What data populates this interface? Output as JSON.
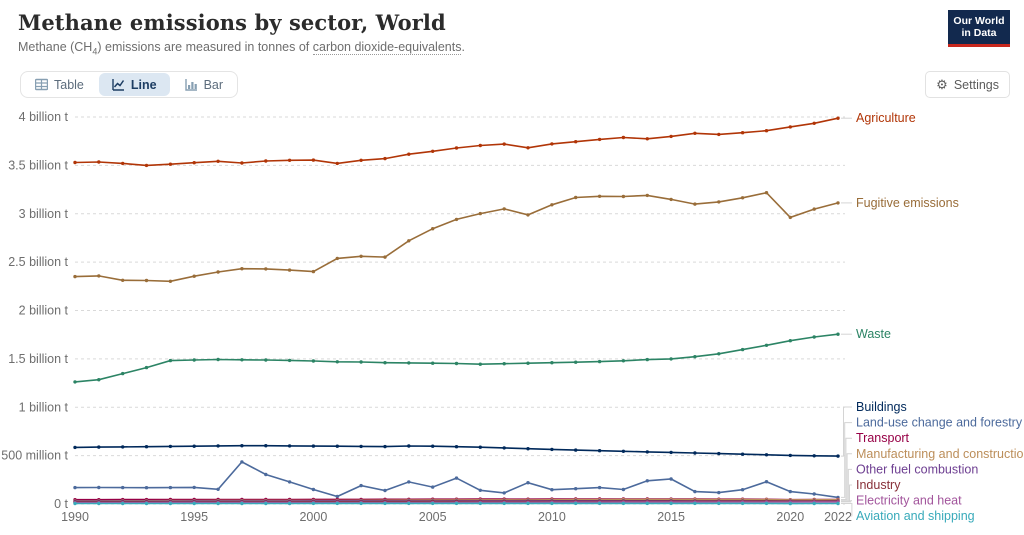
{
  "header": {
    "title": "Methane emissions by sector, World",
    "subtitle_prefix": "Methane (CH",
    "subtitle_sub": "4",
    "subtitle_mid": ") emissions are measured in tonnes of ",
    "subtitle_link": "carbon dioxide-equivalents",
    "subtitle_suffix": ".",
    "logo": {
      "line1": "Our World",
      "line2": "in Data",
      "bg": "#12294e",
      "accent": "#c8281e"
    }
  },
  "toolbar": {
    "tabs": [
      {
        "label": "Table",
        "icon": "table-icon",
        "active": false
      },
      {
        "label": "Line",
        "icon": "line-chart-icon",
        "active": true
      },
      {
        "label": "Bar",
        "icon": "bar-chart-icon",
        "active": false
      }
    ],
    "settings_label": "Settings"
  },
  "chart_data": {
    "type": "line",
    "title": "Methane emissions by sector, World",
    "unit": "million tonnes of CO2-equivalents",
    "grid": true,
    "legend_position": "right-end-labels",
    "xlim": [
      1990,
      2022
    ],
    "ylim": [
      0,
      4000
    ],
    "x": [
      1990,
      1991,
      1992,
      1993,
      1994,
      1995,
      1996,
      1997,
      1998,
      1999,
      2000,
      2001,
      2002,
      2003,
      2004,
      2005,
      2006,
      2007,
      2008,
      2009,
      2010,
      2011,
      2012,
      2013,
      2014,
      2015,
      2016,
      2017,
      2018,
      2019,
      2020,
      2021,
      2022
    ],
    "x_ticks": [
      1990,
      1995,
      2000,
      2005,
      2010,
      2015,
      2020,
      2022
    ],
    "y_ticks": [
      {
        "value": 0,
        "label": "0 t"
      },
      {
        "value": 500,
        "label": "500 million t"
      },
      {
        "value": 1000,
        "label": "1 billion t"
      },
      {
        "value": 1500,
        "label": "1.5 billion t"
      },
      {
        "value": 2000,
        "label": "2 billion t"
      },
      {
        "value": 2500,
        "label": "2.5 billion t"
      },
      {
        "value": 3000,
        "label": "3 billion t"
      },
      {
        "value": 3500,
        "label": "3.5 billion t"
      },
      {
        "value": 4000,
        "label": "4 billion t"
      }
    ],
    "series": [
      {
        "name": "Agriculture",
        "color": "#B13507",
        "label_slot": null,
        "values": [
          3530,
          3535,
          3520,
          3500,
          3512,
          3528,
          3542,
          3525,
          3545,
          3552,
          3555,
          3520,
          3552,
          3570,
          3615,
          3645,
          3680,
          3705,
          3720,
          3682,
          3722,
          3745,
          3768,
          3788,
          3775,
          3800,
          3832,
          3820,
          3838,
          3858,
          3898,
          3935,
          3988
        ]
      },
      {
        "name": "Fugitive emissions",
        "color": "#996D39",
        "label_slot": null,
        "values": [
          2350,
          2358,
          2312,
          2310,
          2302,
          2355,
          2398,
          2432,
          2430,
          2418,
          2402,
          2538,
          2560,
          2552,
          2720,
          2845,
          2942,
          3002,
          3050,
          2988,
          3092,
          3168,
          3180,
          3178,
          3190,
          3148,
          3100,
          3122,
          3165,
          3218,
          2962,
          3048,
          3112
        ]
      },
      {
        "name": "Waste",
        "color": "#2C8465",
        "label_slot": null,
        "values": [
          1262,
          1285,
          1348,
          1410,
          1482,
          1488,
          1494,
          1490,
          1488,
          1484,
          1478,
          1470,
          1468,
          1460,
          1458,
          1455,
          1452,
          1445,
          1450,
          1455,
          1460,
          1466,
          1472,
          1480,
          1492,
          1500,
          1522,
          1552,
          1596,
          1640,
          1688,
          1726,
          1755
        ]
      },
      {
        "name": "Buildings",
        "color": "#00295B",
        "label_slot": 0,
        "values": [
          585,
          588,
          590,
          592,
          595,
          597,
          600,
          603,
          603,
          600,
          598,
          597,
          595,
          593,
          599,
          597,
          592,
          587,
          580,
          572,
          564,
          557,
          551,
          545,
          539,
          533,
          527,
          521,
          515,
          509,
          502,
          498,
          495
        ]
      },
      {
        "name": "Land-use change and forestry",
        "color": "#4C6A9C",
        "label_slot": 1,
        "values": [
          170,
          171,
          170,
          168,
          170,
          172,
          152,
          435,
          305,
          228,
          150,
          78,
          190,
          140,
          228,
          175,
          268,
          142,
          115,
          220,
          148,
          158,
          170,
          150,
          240,
          258,
          128,
          118,
          148,
          230,
          128,
          103,
          68
        ]
      },
      {
        "name": "Transport",
        "color": "#970046",
        "label_slot": 2,
        "values": [
          44,
          44,
          45,
          45,
          46,
          46,
          46,
          47,
          47,
          47,
          48,
          48,
          48,
          49,
          49,
          50,
          50,
          51,
          51,
          50,
          51,
          52,
          52,
          52,
          52,
          51,
          51,
          50,
          50,
          49,
          44,
          46,
          47
        ]
      },
      {
        "name": "Manufacturing and construction",
        "color": "#BC8E5A",
        "label_slot": 3,
        "values": [
          32,
          32,
          33,
          33,
          34,
          34,
          35,
          35,
          35,
          35,
          36,
          36,
          37,
          38,
          39,
          40,
          41,
          42,
          42,
          41,
          43,
          44,
          44,
          45,
          45,
          45,
          45,
          44,
          44,
          44,
          42,
          43,
          43
        ]
      },
      {
        "name": "Other fuel combustion",
        "color": "#6D3E91",
        "label_slot": 4,
        "values": [
          28,
          28,
          28,
          28,
          28,
          29,
          29,
          29,
          29,
          29,
          30,
          30,
          30,
          31,
          31,
          31,
          32,
          32,
          32,
          32,
          33,
          33,
          33,
          33,
          33,
          33,
          32,
          32,
          32,
          32,
          31,
          31,
          32
        ]
      },
      {
        "name": "Industry",
        "color": "#883039",
        "label_slot": 5,
        "values": [
          20,
          20,
          20,
          21,
          21,
          21,
          22,
          22,
          22,
          22,
          23,
          23,
          23,
          24,
          24,
          25,
          25,
          26,
          26,
          25,
          27,
          27,
          27,
          28,
          28,
          28,
          28,
          28,
          28,
          29,
          27,
          28,
          28
        ]
      },
      {
        "name": "Electricity and heat",
        "color": "#A2559C",
        "label_slot": 6,
        "values": [
          13,
          13,
          13,
          13,
          14,
          14,
          14,
          14,
          14,
          14,
          15,
          15,
          15,
          16,
          16,
          17,
          17,
          18,
          18,
          18,
          19,
          19,
          19,
          20,
          20,
          20,
          20,
          21,
          21,
          21,
          21,
          22,
          22
        ]
      },
      {
        "name": "Aviation and shipping",
        "color": "#38AABA",
        "label_slot": 7,
        "values": [
          5,
          5,
          5,
          5,
          5,
          5,
          5,
          5,
          5,
          5,
          6,
          6,
          6,
          6,
          6,
          6,
          6,
          6,
          6,
          6,
          6,
          6,
          6,
          6,
          6,
          6,
          6,
          6,
          6,
          6,
          4,
          5,
          5
        ]
      }
    ]
  }
}
